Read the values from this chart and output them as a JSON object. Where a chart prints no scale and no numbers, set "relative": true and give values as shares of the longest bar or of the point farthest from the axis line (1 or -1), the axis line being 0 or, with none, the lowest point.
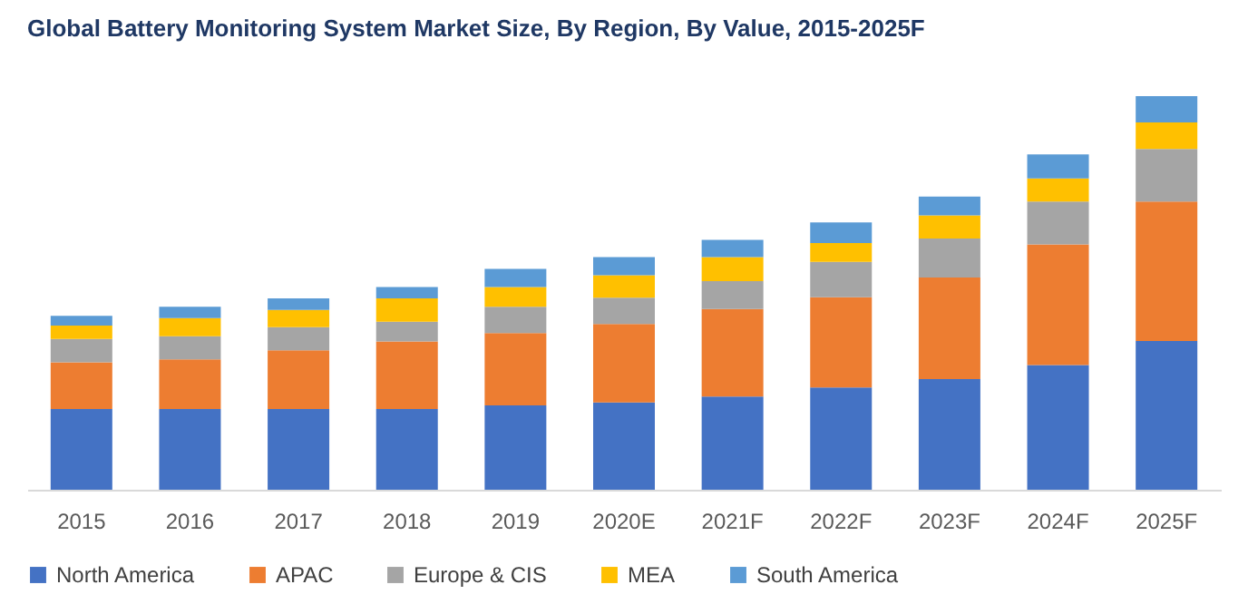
{
  "chart_data": {
    "type": "bar",
    "title": "Global Battery Monitoring System Market Size, By Region, By Value, 2015-2025F",
    "categories": [
      "2015",
      "2016",
      "2017",
      "2018",
      "2019",
      "2020E",
      "2021F",
      "2022F",
      "2023F",
      "2024F",
      "2025F"
    ],
    "stacked": true,
    "relative": true,
    "legend": "bottom",
    "grid": false,
    "series": [
      {
        "name": "North America",
        "color": "#4472c4",
        "values": [
          0.205,
          0.205,
          0.205,
          0.205,
          0.214,
          0.222,
          0.237,
          0.26,
          0.281,
          0.317,
          0.378
        ]
      },
      {
        "name": "APAC",
        "color": "#ed7d31",
        "values": [
          0.119,
          0.126,
          0.149,
          0.172,
          0.184,
          0.199,
          0.222,
          0.229,
          0.258,
          0.306,
          0.354
        ]
      },
      {
        "name": "Europe & CIS",
        "color": "#a5a5a5",
        "values": [
          0.059,
          0.059,
          0.059,
          0.05,
          0.067,
          0.067,
          0.071,
          0.09,
          0.099,
          0.109,
          0.134
        ]
      },
      {
        "name": "MEA",
        "color": "#ffc000",
        "values": [
          0.034,
          0.046,
          0.044,
          0.059,
          0.05,
          0.057,
          0.061,
          0.048,
          0.059,
          0.059,
          0.067
        ]
      },
      {
        "name": "South America",
        "color": "#5b9bd5",
        "values": [
          0.025,
          0.029,
          0.029,
          0.029,
          0.046,
          0.046,
          0.044,
          0.052,
          0.048,
          0.061,
          0.067
        ]
      }
    ]
  }
}
